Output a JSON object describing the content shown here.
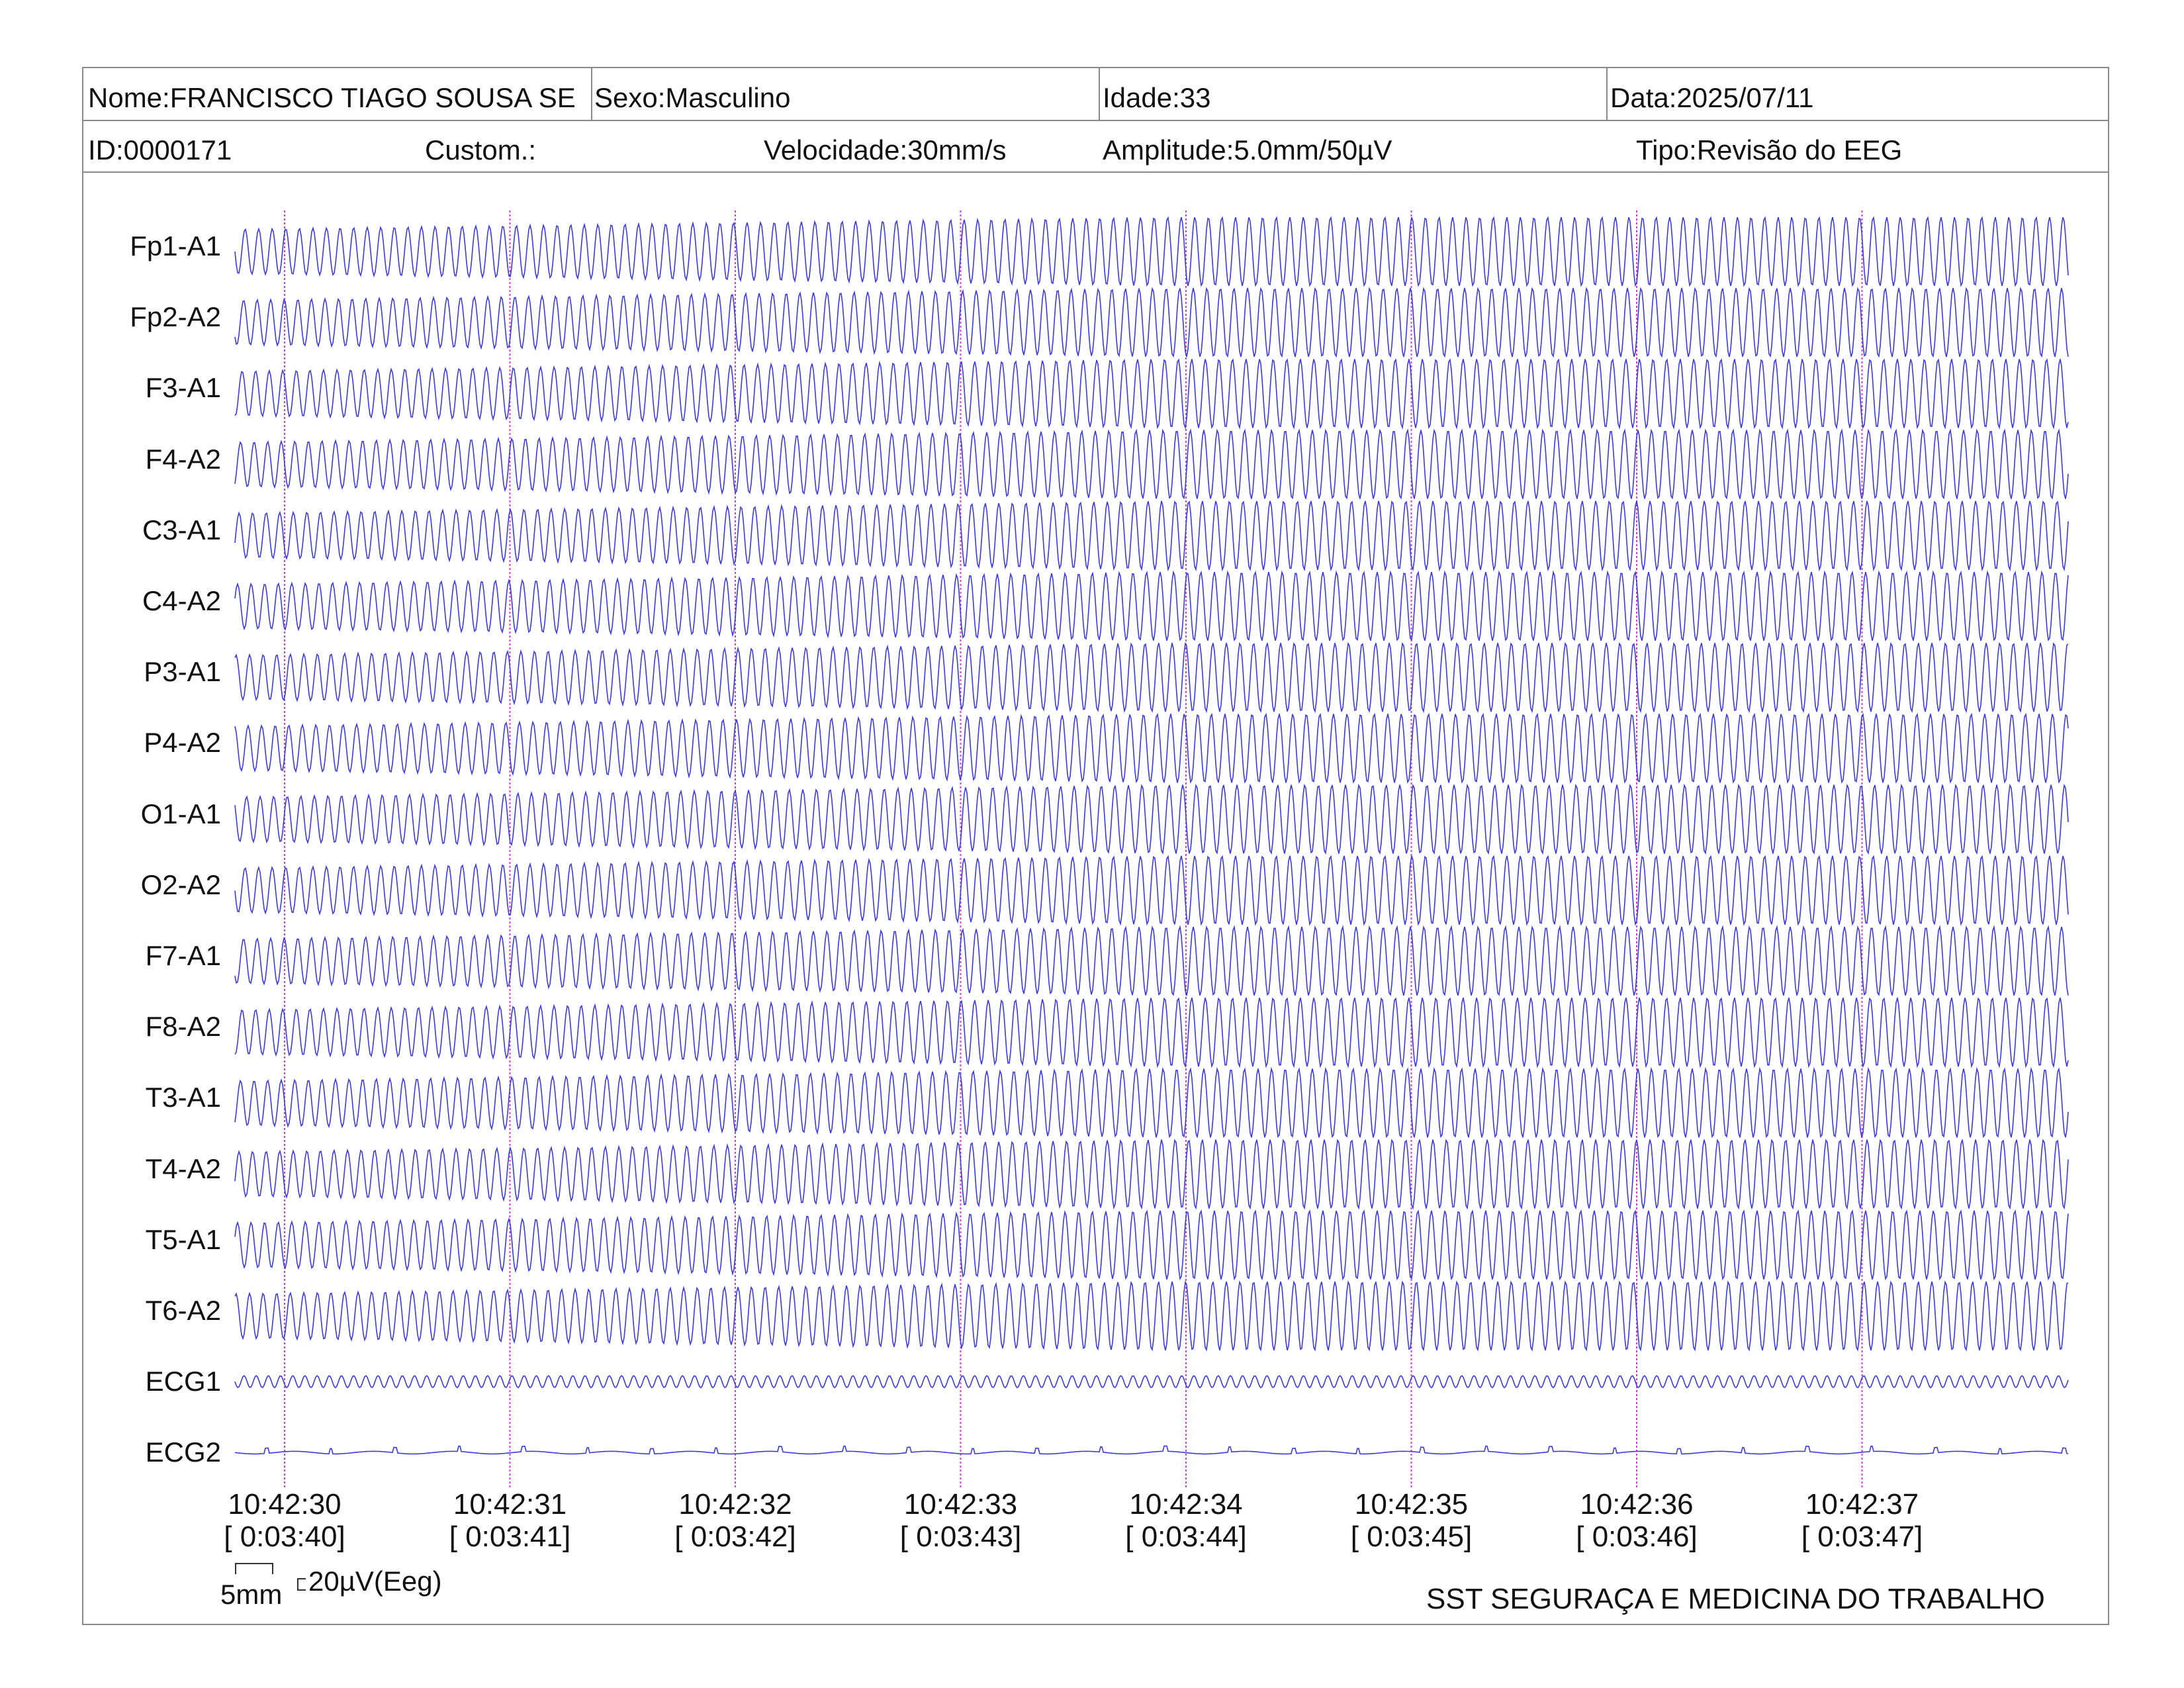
{
  "header": {
    "nome": "Nome:FRANCISCO TIAGO SOUSA SE",
    "sexo": "Sexo:Masculino",
    "idade": "Idade:33",
    "data": "Data:2025/07/11",
    "id": "ID:0000171",
    "custom": "Custom.:",
    "velocidade": "Velocidade:30mm/s",
    "amplitude": "Amplitude:5.0mm/50µV",
    "tipo": "Tipo:Revisão do EEG"
  },
  "channels": [
    "Fp1-A1",
    "Fp2-A2",
    "F3-A1",
    "F4-A2",
    "C3-A1",
    "C4-A2",
    "P3-A1",
    "P4-A2",
    "O1-A1",
    "O2-A2",
    "F7-A1",
    "F8-A2",
    "T3-A1",
    "T4-A2",
    "T5-A1",
    "T6-A2",
    "ECG1",
    "ECG2"
  ],
  "time_markers": [
    {
      "clock": "10:42:30",
      "elapsed": "[ 0:03:40]"
    },
    {
      "clock": "10:42:31",
      "elapsed": "[ 0:03:41]"
    },
    {
      "clock": "10:42:32",
      "elapsed": "[ 0:03:42]"
    },
    {
      "clock": "10:42:33",
      "elapsed": "[ 0:03:43]"
    },
    {
      "clock": "10:42:34",
      "elapsed": "[ 0:03:44]"
    },
    {
      "clock": "10:42:35",
      "elapsed": "[ 0:03:45]"
    },
    {
      "clock": "10:42:36",
      "elapsed": "[ 0:03:46]"
    },
    {
      "clock": "10:42:37",
      "elapsed": "[ 0:03:47]"
    }
  ],
  "scale": {
    "time_label": "5mm",
    "amp_label": "20µV(Eeg)"
  },
  "footer": {
    "company": "SST SEGURAÇA E MEDICINA DO TRABALHO"
  },
  "colors": {
    "trace": "#3a3ae0",
    "marker": "#d040d0",
    "border": "#8a8a8a"
  }
}
